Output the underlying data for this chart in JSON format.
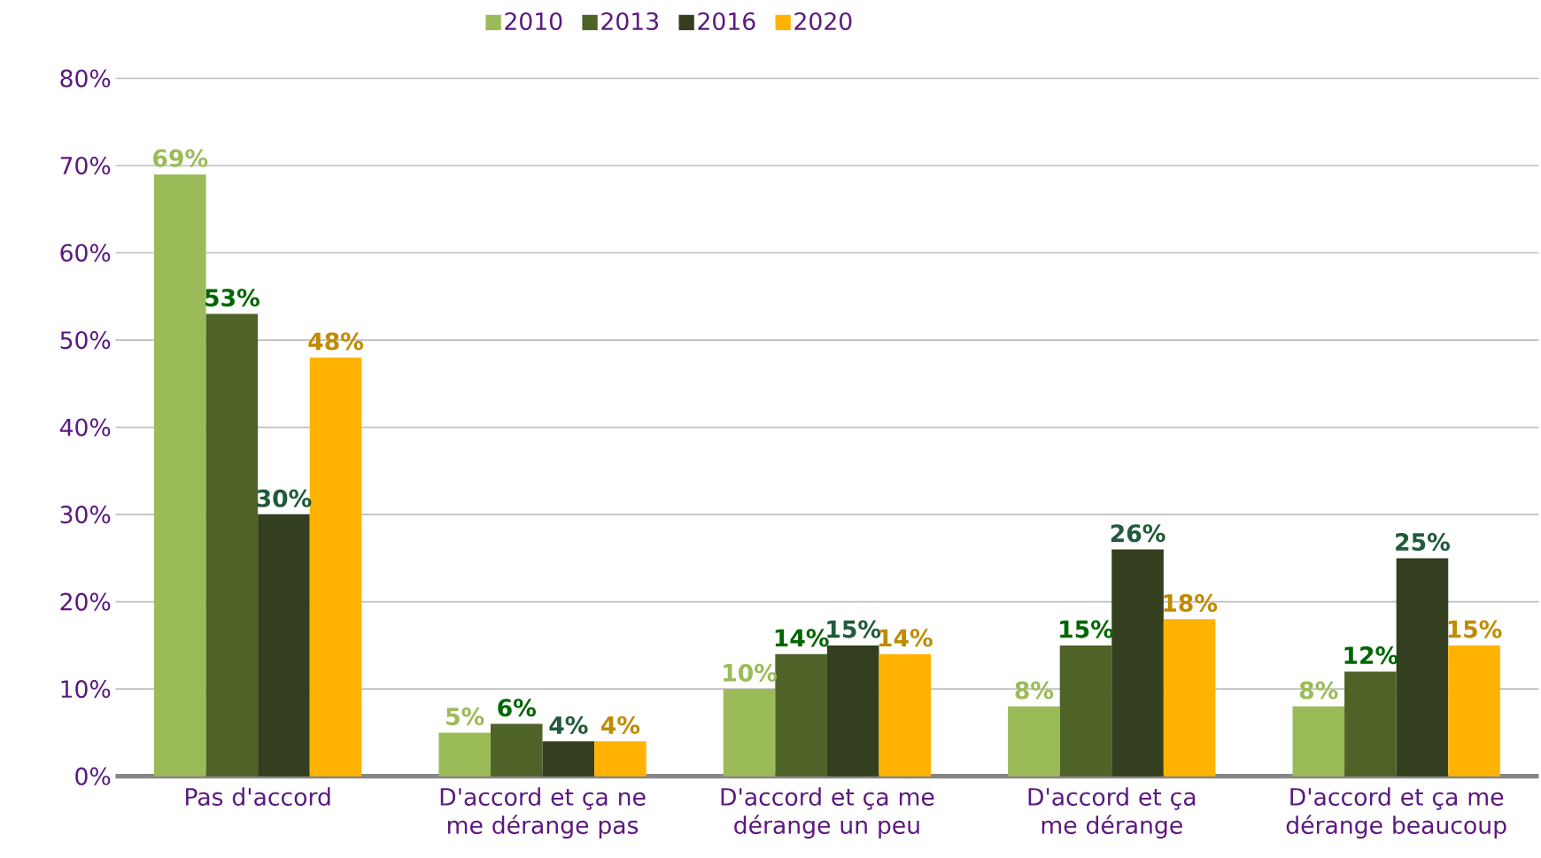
{
  "chart_data": {
    "type": "bar",
    "categories": [
      "Pas d'accord",
      "D'accord et ça ne me dérange pas",
      "D'accord et ça me dérange un peu",
      "D'accord et ça me dérange",
      "D'accord et ça me dérange beaucoup"
    ],
    "series": [
      {
        "name": "2010",
        "color": "#9bbb59",
        "values": [
          69,
          5,
          10,
          8,
          8
        ],
        "value_labels": [
          "69%",
          "5%",
          "10%",
          "8%",
          "8%"
        ]
      },
      {
        "name": "2013",
        "color": "#4f6228",
        "values": [
          53,
          6,
          14,
          15,
          12
        ],
        "value_labels": [
          "53%",
          "6%",
          "14%",
          "15%",
          "12%"
        ]
      },
      {
        "name": "2016",
        "color": "#333f1e",
        "values": [
          30,
          4,
          15,
          26,
          25
        ],
        "value_labels": [
          "30%",
          "4%",
          "15%",
          "26%",
          "25%"
        ]
      },
      {
        "name": "2020",
        "color": "#ffb300",
        "values": [
          48,
          4,
          14,
          18,
          15
        ],
        "value_labels": [
          "48%",
          "4%",
          "14%",
          "18%",
          "15%"
        ]
      }
    ],
    "ylim": [
      0,
      80
    ],
    "yticks": [
      {
        "value": 0,
        "label": "0%"
      },
      {
        "value": 10,
        "label": "10%"
      },
      {
        "value": 20,
        "label": "20%"
      },
      {
        "value": 30,
        "label": "30%"
      },
      {
        "value": 40,
        "label": "40%"
      },
      {
        "value": 50,
        "label": "50%"
      },
      {
        "value": 60,
        "label": "60%"
      },
      {
        "value": 70,
        "label": "70%"
      },
      {
        "value": 80,
        "label": "80%"
      }
    ],
    "grid": "y",
    "legend": "top"
  }
}
